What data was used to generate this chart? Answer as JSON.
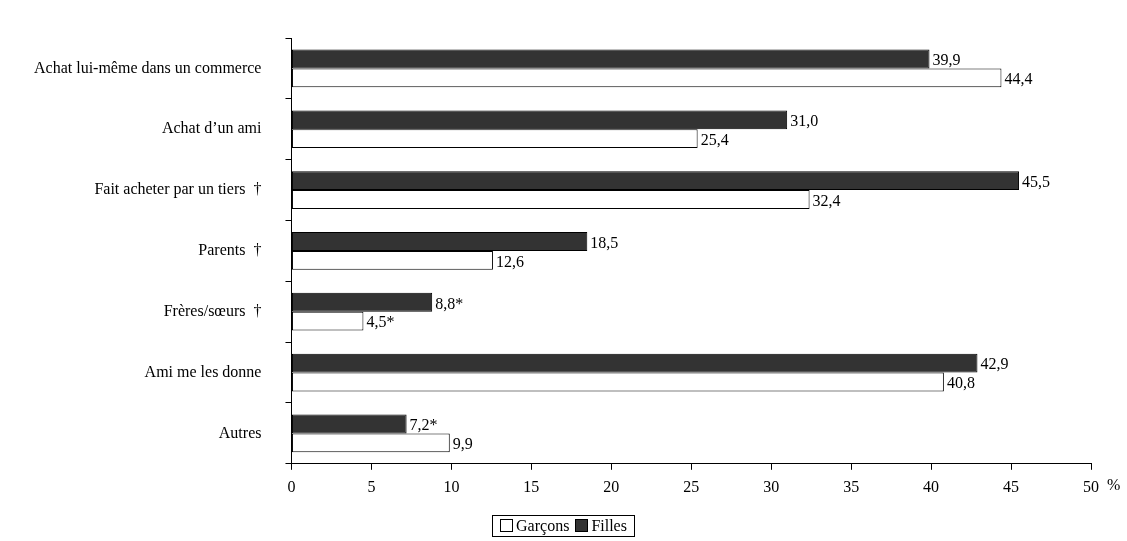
{
  "chart_data": {
    "type": "bar",
    "orientation": "horizontal",
    "xlabel": "%",
    "categories": [
      "Achat lui-même dans un commerce",
      "Achat d’un ami",
      "Fait acheter par un tiers  †",
      "Parents  †",
      "Frères/sœurs  †",
      "Ami me les donne",
      "Autres"
    ],
    "series": [
      {
        "name": "Filles",
        "color": "#333333",
        "values": [
          39.9,
          31.0,
          45.5,
          18.5,
          8.8,
          42.9,
          7.2
        ],
        "value_labels": [
          "39,9",
          "31,0",
          "45,5",
          "18,5",
          "8,8*",
          "42,9",
          "7,2*"
        ]
      },
      {
        "name": "Garçons",
        "color": "#ffffff",
        "values": [
          44.4,
          25.4,
          32.4,
          12.6,
          4.5,
          40.8,
          9.9
        ],
        "value_labels": [
          "44,4",
          "25,4",
          "32,4",
          "12,6",
          "4,5*",
          "40,8",
          "9,9"
        ]
      }
    ],
    "xlim": [
      0,
      50
    ],
    "xticks": [
      0,
      5,
      10,
      15,
      20,
      25,
      30,
      35,
      40,
      45,
      50
    ],
    "grid": false,
    "legend": "bottom"
  }
}
